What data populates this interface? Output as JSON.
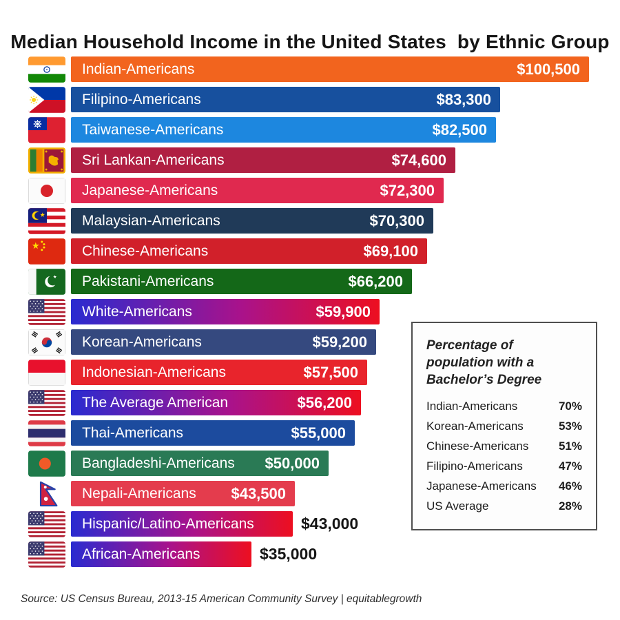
{
  "title": "Median Household Income in the United States  by Ethnic Group",
  "source": "Source: US Census Bureau, 2013-15 American Community Survey | equitablegrowth",
  "chart_data": [
    {
      "type": "bar",
      "orientation": "horizontal",
      "title": "Median Household Income in the United States  by Ethnic Group",
      "value_unit": "USD",
      "max_value": 100500,
      "rows": [
        {
          "label": "Indian-Americans",
          "value": 100500,
          "value_label": "$100,500",
          "flag": "india",
          "colors": [
            "#F2641E"
          ],
          "value_inside": true
        },
        {
          "label": "Filipino-Americans",
          "value": 83300,
          "value_label": "$83,300",
          "flag": "philippines",
          "colors": [
            "#17509E"
          ],
          "value_inside": true
        },
        {
          "label": "Taiwanese-Americans",
          "value": 82500,
          "value_label": "$82,500",
          "flag": "taiwan",
          "colors": [
            "#1D87DF"
          ],
          "value_inside": true
        },
        {
          "label": "Sri Lankan-Americans",
          "value": 74600,
          "value_label": "$74,600",
          "flag": "sri-lanka",
          "colors": [
            "#B01F42"
          ],
          "value_inside": true
        },
        {
          "label": "Japanese-Americans",
          "value": 72300,
          "value_label": "$72,300",
          "flag": "japan",
          "colors": [
            "#E0294F"
          ],
          "value_inside": true
        },
        {
          "label": "Malaysian-Americans",
          "value": 70300,
          "value_label": "$70,300",
          "flag": "malaysia",
          "colors": [
            "#203A58"
          ],
          "value_inside": true
        },
        {
          "label": "Chinese-Americans",
          "value": 69100,
          "value_label": "$69,100",
          "flag": "china",
          "colors": [
            "#D1202A"
          ],
          "value_inside": true
        },
        {
          "label": "Pakistani-Americans",
          "value": 66200,
          "value_label": "$66,200",
          "flag": "pakistan",
          "colors": [
            "#146818"
          ],
          "value_inside": true
        },
        {
          "label": "White-Americans",
          "value": 59900,
          "value_label": "$59,900",
          "flag": "usa",
          "colors": [
            "#2A2BD0",
            "#A9128B",
            "#ED0F20"
          ],
          "value_inside": true
        },
        {
          "label": "Korean-Americans",
          "value": 59200,
          "value_label": "$59,200",
          "flag": "south-korea",
          "colors": [
            "#35497F"
          ],
          "value_inside": true
        },
        {
          "label": "Indonesian-Americans",
          "value": 57500,
          "value_label": "$57,500",
          "flag": "indonesia",
          "colors": [
            "#E8242C"
          ],
          "value_inside": true
        },
        {
          "label": "The Average American",
          "value": 56200,
          "value_label": "$56,200",
          "flag": "usa",
          "colors": [
            "#2A2BD0",
            "#A9128B",
            "#ED0F20"
          ],
          "value_inside": true
        },
        {
          "label": "Thai-Americans",
          "value": 55000,
          "value_label": "$55,000",
          "flag": "thailand",
          "colors": [
            "#1C4B9E"
          ],
          "value_inside": true
        },
        {
          "label": "Bangladeshi-Americans",
          "value": 50000,
          "value_label": "$50,000",
          "flag": "bangladesh",
          "colors": [
            "#2A7A55"
          ],
          "value_inside": true
        },
        {
          "label": "Nepali-Americans",
          "value": 43500,
          "value_label": "$43,500",
          "flag": "nepal",
          "colors": [
            "#E43C4D"
          ],
          "value_inside": true
        },
        {
          "label": "Hispanic/Latino-Americans",
          "value": 43000,
          "value_label": "$43,000",
          "flag": "usa",
          "colors": [
            "#2A2BD0",
            "#A9128B",
            "#ED0F20"
          ],
          "value_inside": false
        },
        {
          "label": "African-Americans",
          "value": 35000,
          "value_label": "$35,000",
          "flag": "usa",
          "colors": [
            "#2A2BD0",
            "#A9128B",
            "#ED0F20"
          ],
          "value_inside": false
        }
      ]
    },
    {
      "type": "table",
      "title": "Percentage of population with a Bachelor’s Degree",
      "rows": [
        {
          "label": "Indian-Americans",
          "value": "70%"
        },
        {
          "label": "Korean-Americans",
          "value": "53%"
        },
        {
          "label": "Chinese-Americans",
          "value": "51%"
        },
        {
          "label": "Filipino-Americans",
          "value": "47%"
        },
        {
          "label": "Japanese-Americans",
          "value": "46%"
        },
        {
          "label": "US Average",
          "value": "28%"
        }
      ]
    }
  ]
}
